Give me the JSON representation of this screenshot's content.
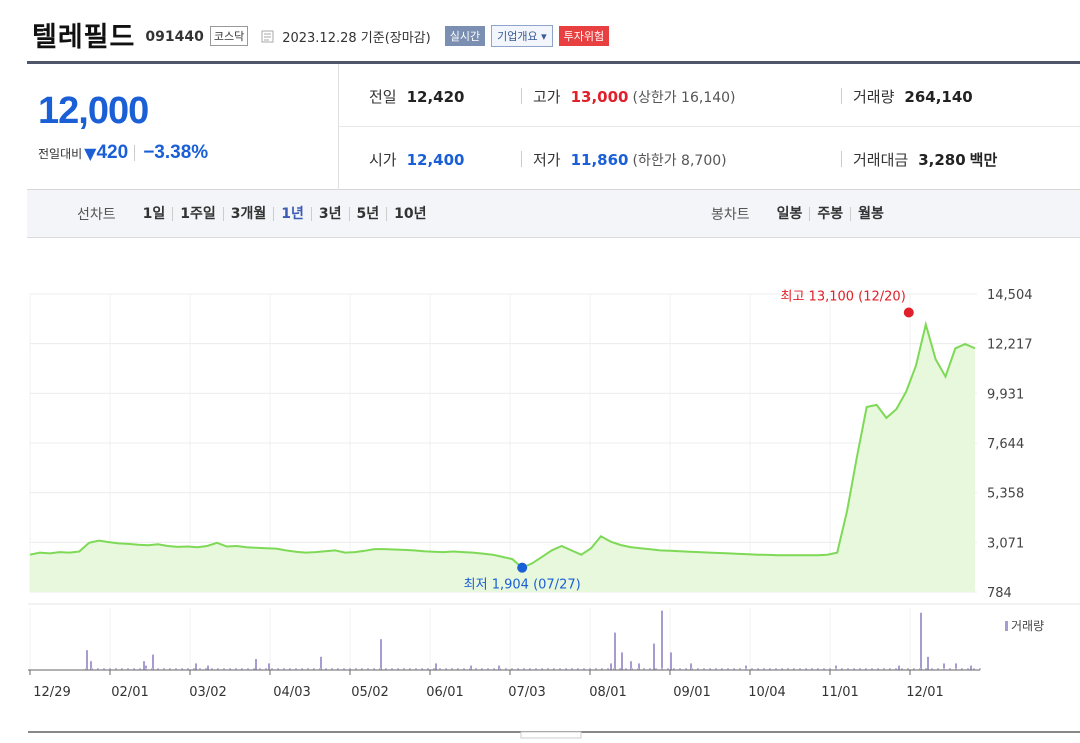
{
  "stock": {
    "name": "텔레필드",
    "code": "091440",
    "market": "코스닥",
    "date": "2023.12.28 기준(장마감)",
    "buttons": {
      "realtime": "실시간",
      "company_info": "기업개요",
      "risk": "투자위험"
    }
  },
  "price": {
    "current": "12,000",
    "change_label": "전일대비",
    "change_arrow": "▼",
    "change": "420",
    "change_pct": "−3.38%",
    "color": "#1a5fd6"
  },
  "stats": {
    "prev_close": {
      "label": "전일",
      "value": "12,420"
    },
    "high": {
      "label": "고가",
      "value": "13,000",
      "sub": "(상한가 16,140)"
    },
    "volume": {
      "label": "거래량",
      "value": "264,140"
    },
    "open": {
      "label": "시가",
      "value": "12,400"
    },
    "low": {
      "label": "저가",
      "value": "11,860",
      "sub": "(하한가 8,700)"
    },
    "amount": {
      "label": "거래대금",
      "value": "3,280",
      "unit": "백만"
    }
  },
  "periods": {
    "line_heading": "선차트",
    "line_options": [
      "1일",
      "1주일",
      "3개월",
      "1년",
      "3년",
      "5년",
      "10년"
    ],
    "active": "1년",
    "candle_heading": "봉차트",
    "candle_options": [
      "일봉",
      "주봉",
      "월봉"
    ]
  },
  "chart_data": {
    "type": "area",
    "y_ticks": [
      "14,504",
      "12,217",
      "9,931",
      "7,644",
      "5,358",
      "3,071",
      "784"
    ],
    "ylim": [
      784,
      14504
    ],
    "x_ticks": [
      "12/29",
      "02/01",
      "03/02",
      "04/03",
      "05/02",
      "06/01",
      "07/03",
      "08/01",
      "09/01",
      "10/04",
      "11/01",
      "12/01"
    ],
    "high_label": "최고 13,100 (12/20)",
    "low_label": "최저 1,904 (07/27)",
    "high": {
      "x": "12/20",
      "y": 13100
    },
    "low": {
      "x": "07/27",
      "y": 1904
    },
    "volume_label": "거래량",
    "line_color": "#7ed957",
    "fill_color": "#e8f8dd",
    "series": [
      {
        "values": [
          2500,
          2600,
          2560,
          2620,
          2600,
          2650,
          3050,
          3150,
          3080,
          3020,
          3000,
          2960,
          2940,
          2980,
          2900,
          2860,
          2880,
          2840,
          2900,
          3050,
          2880,
          2900,
          2840,
          2820,
          2800,
          2780,
          2700,
          2640,
          2600,
          2620,
          2660,
          2700,
          2600,
          2620,
          2680,
          2760,
          2760,
          2740,
          2720,
          2700,
          2660,
          2640,
          2620,
          2650,
          2620,
          2600,
          2550,
          2500,
          2400,
          2300,
          1904,
          2100,
          2400,
          2700,
          2900,
          2700,
          2500,
          2800,
          3350,
          3100,
          2950,
          2850,
          2800,
          2750,
          2700,
          2680,
          2660,
          2640,
          2620,
          2600,
          2580,
          2560,
          2540,
          2520,
          2500,
          2490,
          2480,
          2480,
          2480,
          2480,
          2480,
          2500,
          2600,
          4500,
          7000,
          9300,
          9400,
          8800,
          9200,
          10000,
          11200,
          13100,
          11500,
          10700,
          12000,
          12200,
          12000
        ]
      }
    ],
    "volume_spikes": [
      [
        56,
        9
      ],
      [
        60,
        4
      ],
      [
        113,
        4
      ],
      [
        115,
        2
      ],
      [
        122,
        7
      ],
      [
        165,
        3
      ],
      [
        177,
        2
      ],
      [
        225,
        5
      ],
      [
        238,
        3
      ],
      [
        290,
        6
      ],
      [
        350,
        14
      ],
      [
        405,
        3
      ],
      [
        440,
        2
      ],
      [
        468,
        2
      ],
      [
        580,
        3
      ],
      [
        584,
        17
      ],
      [
        591,
        8
      ],
      [
        600,
        4
      ],
      [
        608,
        3
      ],
      [
        623,
        12
      ],
      [
        631,
        27
      ],
      [
        640,
        8
      ],
      [
        660,
        3
      ],
      [
        715,
        2
      ],
      [
        805,
        2
      ],
      [
        868,
        2
      ],
      [
        890,
        26
      ],
      [
        897,
        6
      ],
      [
        913,
        3
      ],
      [
        925,
        3
      ],
      [
        940,
        2
      ]
    ]
  }
}
